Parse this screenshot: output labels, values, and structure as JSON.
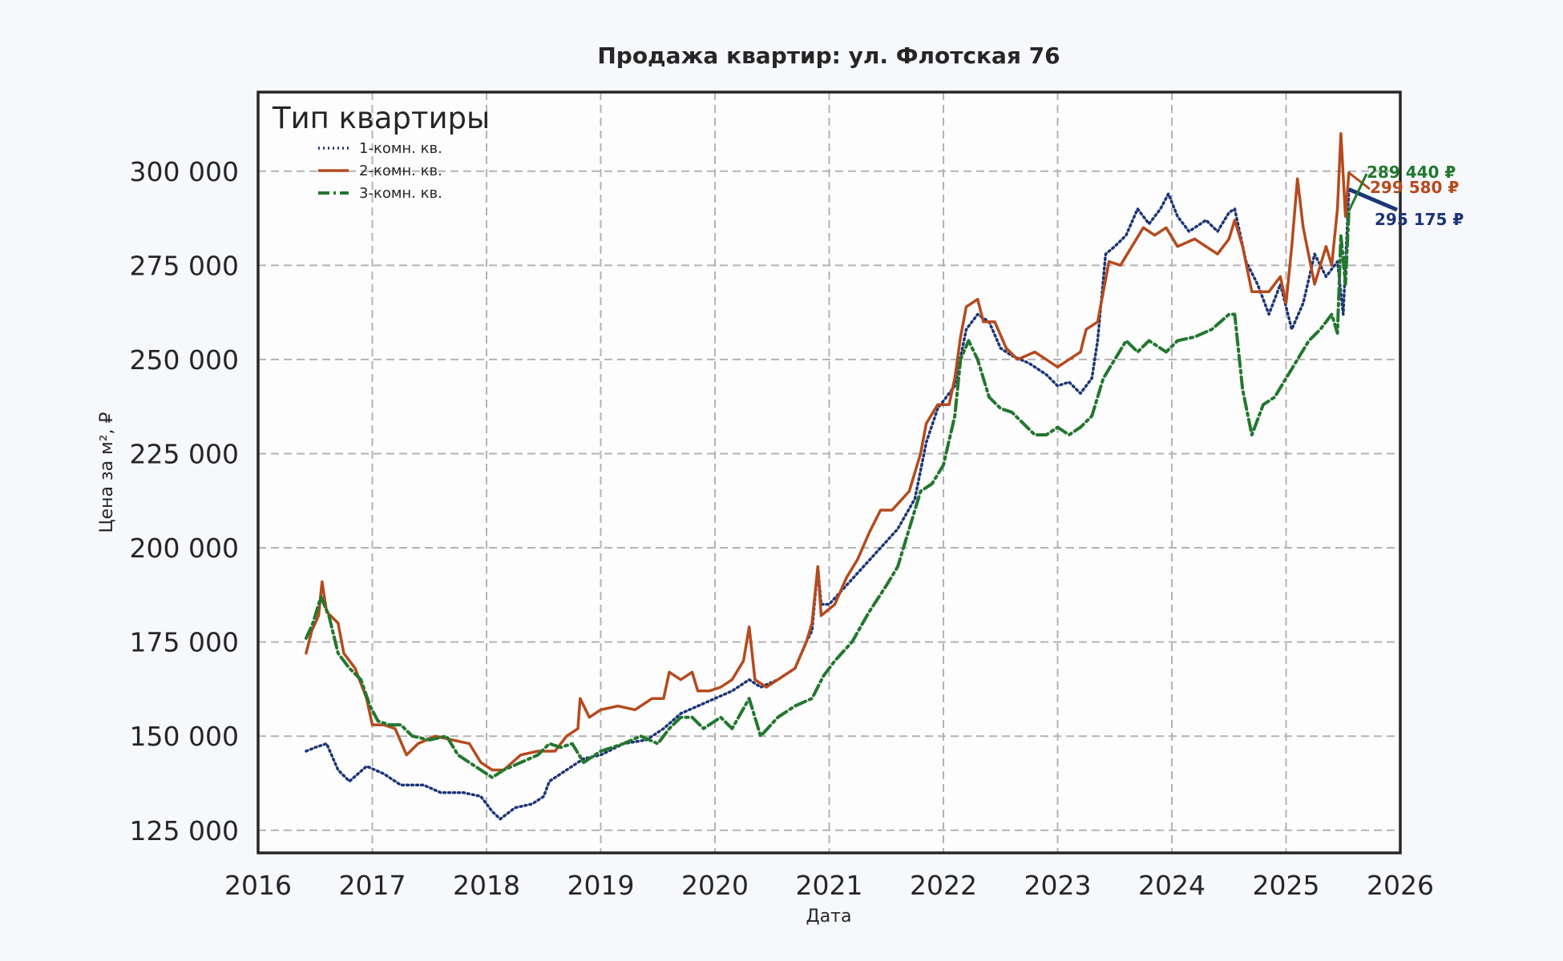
{
  "chart_data": {
    "type": "line",
    "title": "Продажа квартир: ул. Флотская 76",
    "xlabel": "Дата",
    "ylabel": "Цена за м², ₽",
    "xlim": [
      2016,
      2026
    ],
    "ylim": [
      119000,
      321000
    ],
    "x_ticks": [
      "2016",
      "2017",
      "2018",
      "2019",
      "2020",
      "2021",
      "2022",
      "2023",
      "2024",
      "2025",
      "2026"
    ],
    "y_ticks": [
      "125 000",
      "150 000",
      "175 000",
      "200 000",
      "225 000",
      "250 000",
      "275 000",
      "300 000"
    ],
    "grid": true,
    "legend": {
      "title": "Тип квартиры",
      "position": "top-left"
    },
    "series": [
      {
        "name": "1-комн. кв.",
        "color": "#1c3578",
        "style": "dotted",
        "end_label": "295 175 ₽",
        "points": [
          [
            2016.42,
            146000
          ],
          [
            2016.5,
            147000
          ],
          [
            2016.6,
            148000
          ],
          [
            2016.7,
            141000
          ],
          [
            2016.8,
            138000
          ],
          [
            2016.95,
            142000
          ],
          [
            2017.1,
            140000
          ],
          [
            2017.25,
            137000
          ],
          [
            2017.45,
            137000
          ],
          [
            2017.6,
            135000
          ],
          [
            2017.8,
            135000
          ],
          [
            2017.95,
            134000
          ],
          [
            2018.05,
            130000
          ],
          [
            2018.12,
            128000
          ],
          [
            2018.25,
            131000
          ],
          [
            2018.4,
            132000
          ],
          [
            2018.5,
            134000
          ],
          [
            2018.55,
            138000
          ],
          [
            2018.7,
            141000
          ],
          [
            2018.85,
            144000
          ],
          [
            2019.0,
            145000
          ],
          [
            2019.2,
            148000
          ],
          [
            2019.4,
            149000
          ],
          [
            2019.55,
            152000
          ],
          [
            2019.7,
            156000
          ],
          [
            2019.85,
            158000
          ],
          [
            2020.0,
            160000
          ],
          [
            2020.15,
            162000
          ],
          [
            2020.3,
            165000
          ],
          [
            2020.4,
            163000
          ],
          [
            2020.55,
            165000
          ],
          [
            2020.7,
            168000
          ],
          [
            2020.8,
            175000
          ],
          [
            2020.85,
            178000
          ],
          [
            2020.9,
            195000
          ],
          [
            2020.93,
            185000
          ],
          [
            2021.0,
            185000
          ],
          [
            2021.15,
            190000
          ],
          [
            2021.3,
            195000
          ],
          [
            2021.45,
            200000
          ],
          [
            2021.6,
            205000
          ],
          [
            2021.75,
            213000
          ],
          [
            2021.85,
            228000
          ],
          [
            2021.95,
            237000
          ],
          [
            2022.1,
            243000
          ],
          [
            2022.2,
            258000
          ],
          [
            2022.3,
            262000
          ],
          [
            2022.4,
            260000
          ],
          [
            2022.5,
            253000
          ],
          [
            2022.6,
            251000
          ],
          [
            2022.75,
            249000
          ],
          [
            2022.9,
            246000
          ],
          [
            2023.0,
            243000
          ],
          [
            2023.1,
            244000
          ],
          [
            2023.2,
            241000
          ],
          [
            2023.3,
            245000
          ],
          [
            2023.35,
            255000
          ],
          [
            2023.42,
            278000
          ],
          [
            2023.5,
            280000
          ],
          [
            2023.6,
            283000
          ],
          [
            2023.7,
            290000
          ],
          [
            2023.8,
            286000
          ],
          [
            2023.9,
            290000
          ],
          [
            2023.97,
            294000
          ],
          [
            2024.05,
            288000
          ],
          [
            2024.15,
            284000
          ],
          [
            2024.3,
            287000
          ],
          [
            2024.4,
            284000
          ],
          [
            2024.5,
            289000
          ],
          [
            2024.55,
            290000
          ],
          [
            2024.6,
            283000
          ],
          [
            2024.65,
            276000
          ],
          [
            2024.75,
            270000
          ],
          [
            2024.85,
            262000
          ],
          [
            2024.95,
            270000
          ],
          [
            2025.05,
            258000
          ],
          [
            2025.15,
            265000
          ],
          [
            2025.25,
            278000
          ],
          [
            2025.35,
            272000
          ],
          [
            2025.45,
            276000
          ],
          [
            2025.5,
            262000
          ],
          [
            2025.55,
            295175
          ]
        ]
      },
      {
        "name": "2-комн. кв.",
        "color": "#b54a1d",
        "style": "solid",
        "end_label": "299 580 ₽",
        "points": [
          [
            2016.42,
            172000
          ],
          [
            2016.47,
            178000
          ],
          [
            2016.53,
            182000
          ],
          [
            2016.56,
            191000
          ],
          [
            2016.6,
            183000
          ],
          [
            2016.7,
            180000
          ],
          [
            2016.75,
            172000
          ],
          [
            2016.85,
            168000
          ],
          [
            2016.95,
            160000
          ],
          [
            2017.0,
            153000
          ],
          [
            2017.1,
            153000
          ],
          [
            2017.2,
            152000
          ],
          [
            2017.3,
            145000
          ],
          [
            2017.4,
            148000
          ],
          [
            2017.55,
            150000
          ],
          [
            2017.7,
            149000
          ],
          [
            2017.85,
            148000
          ],
          [
            2017.95,
            143000
          ],
          [
            2018.05,
            141000
          ],
          [
            2018.15,
            141000
          ],
          [
            2018.3,
            145000
          ],
          [
            2018.45,
            146000
          ],
          [
            2018.6,
            146000
          ],
          [
            2018.7,
            150000
          ],
          [
            2018.8,
            152000
          ],
          [
            2018.82,
            160000
          ],
          [
            2018.9,
            155000
          ],
          [
            2019.0,
            157000
          ],
          [
            2019.15,
            158000
          ],
          [
            2019.3,
            157000
          ],
          [
            2019.45,
            160000
          ],
          [
            2019.55,
            160000
          ],
          [
            2019.6,
            167000
          ],
          [
            2019.7,
            165000
          ],
          [
            2019.8,
            167000
          ],
          [
            2019.85,
            162000
          ],
          [
            2019.95,
            162000
          ],
          [
            2020.05,
            163000
          ],
          [
            2020.15,
            165000
          ],
          [
            2020.25,
            170000
          ],
          [
            2020.3,
            179000
          ],
          [
            2020.35,
            165000
          ],
          [
            2020.45,
            163000
          ],
          [
            2020.55,
            165000
          ],
          [
            2020.7,
            168000
          ],
          [
            2020.8,
            175000
          ],
          [
            2020.85,
            180000
          ],
          [
            2020.9,
            195000
          ],
          [
            2020.93,
            182000
          ],
          [
            2021.05,
            185000
          ],
          [
            2021.15,
            192000
          ],
          [
            2021.25,
            197000
          ],
          [
            2021.35,
            204000
          ],
          [
            2021.45,
            210000
          ],
          [
            2021.55,
            210000
          ],
          [
            2021.7,
            215000
          ],
          [
            2021.8,
            225000
          ],
          [
            2021.85,
            233000
          ],
          [
            2021.95,
            238000
          ],
          [
            2022.05,
            238000
          ],
          [
            2022.1,
            245000
          ],
          [
            2022.15,
            256000
          ],
          [
            2022.2,
            264000
          ],
          [
            2022.3,
            266000
          ],
          [
            2022.35,
            260000
          ],
          [
            2022.45,
            260000
          ],
          [
            2022.55,
            253000
          ],
          [
            2022.65,
            250000
          ],
          [
            2022.8,
            252000
          ],
          [
            2022.9,
            250000
          ],
          [
            2023.0,
            248000
          ],
          [
            2023.1,
            250000
          ],
          [
            2023.2,
            252000
          ],
          [
            2023.25,
            258000
          ],
          [
            2023.35,
            260000
          ],
          [
            2023.45,
            276000
          ],
          [
            2023.55,
            275000
          ],
          [
            2023.65,
            280000
          ],
          [
            2023.75,
            285000
          ],
          [
            2023.85,
            283000
          ],
          [
            2023.95,
            285000
          ],
          [
            2024.05,
            280000
          ],
          [
            2024.2,
            282000
          ],
          [
            2024.3,
            280000
          ],
          [
            2024.4,
            278000
          ],
          [
            2024.5,
            282000
          ],
          [
            2024.55,
            287000
          ],
          [
            2024.62,
            280000
          ],
          [
            2024.7,
            268000
          ],
          [
            2024.85,
            268000
          ],
          [
            2024.95,
            272000
          ],
          [
            2025.0,
            265000
          ],
          [
            2025.05,
            280000
          ],
          [
            2025.1,
            298000
          ],
          [
            2025.15,
            285000
          ],
          [
            2025.25,
            270000
          ],
          [
            2025.35,
            280000
          ],
          [
            2025.4,
            275000
          ],
          [
            2025.45,
            290000
          ],
          [
            2025.48,
            310000
          ],
          [
            2025.52,
            288000
          ],
          [
            2025.55,
            299580
          ]
        ]
      },
      {
        "name": "3-комн. кв.",
        "color": "#23772e",
        "style": "dashdot",
        "end_label": "289 440 ₽",
        "points": [
          [
            2016.42,
            176000
          ],
          [
            2016.48,
            180000
          ],
          [
            2016.55,
            187000
          ],
          [
            2016.62,
            182000
          ],
          [
            2016.7,
            172000
          ],
          [
            2016.8,
            168000
          ],
          [
            2016.9,
            165000
          ],
          [
            2016.98,
            158000
          ],
          [
            2017.05,
            154000
          ],
          [
            2017.15,
            153000
          ],
          [
            2017.25,
            153000
          ],
          [
            2017.35,
            150000
          ],
          [
            2017.5,
            149000
          ],
          [
            2017.65,
            150000
          ],
          [
            2017.75,
            145000
          ],
          [
            2017.85,
            143000
          ],
          [
            2017.95,
            141000
          ],
          [
            2018.05,
            139000
          ],
          [
            2018.15,
            141000
          ],
          [
            2018.3,
            143000
          ],
          [
            2018.45,
            145000
          ],
          [
            2018.55,
            148000
          ],
          [
            2018.65,
            147000
          ],
          [
            2018.75,
            148000
          ],
          [
            2018.85,
            143000
          ],
          [
            2019.0,
            146000
          ],
          [
            2019.2,
            148000
          ],
          [
            2019.35,
            150000
          ],
          [
            2019.5,
            148000
          ],
          [
            2019.6,
            152000
          ],
          [
            2019.7,
            155000
          ],
          [
            2019.8,
            155000
          ],
          [
            2019.9,
            152000
          ],
          [
            2020.05,
            155000
          ],
          [
            2020.15,
            152000
          ],
          [
            2020.3,
            160000
          ],
          [
            2020.4,
            150000
          ],
          [
            2020.55,
            155000
          ],
          [
            2020.7,
            158000
          ],
          [
            2020.85,
            160000
          ],
          [
            2020.95,
            166000
          ],
          [
            2021.05,
            170000
          ],
          [
            2021.2,
            175000
          ],
          [
            2021.35,
            183000
          ],
          [
            2021.5,
            190000
          ],
          [
            2021.6,
            195000
          ],
          [
            2021.7,
            205000
          ],
          [
            2021.8,
            215000
          ],
          [
            2021.9,
            217000
          ],
          [
            2022.0,
            222000
          ],
          [
            2022.1,
            235000
          ],
          [
            2022.15,
            250000
          ],
          [
            2022.22,
            255000
          ],
          [
            2022.3,
            250000
          ],
          [
            2022.4,
            240000
          ],
          [
            2022.5,
            237000
          ],
          [
            2022.6,
            236000
          ],
          [
            2022.7,
            233000
          ],
          [
            2022.8,
            230000
          ],
          [
            2022.9,
            230000
          ],
          [
            2023.0,
            232000
          ],
          [
            2023.1,
            230000
          ],
          [
            2023.2,
            232000
          ],
          [
            2023.3,
            235000
          ],
          [
            2023.4,
            245000
          ],
          [
            2023.5,
            250000
          ],
          [
            2023.6,
            255000
          ],
          [
            2023.7,
            252000
          ],
          [
            2023.8,
            255000
          ],
          [
            2023.95,
            252000
          ],
          [
            2024.05,
            255000
          ],
          [
            2024.2,
            256000
          ],
          [
            2024.35,
            258000
          ],
          [
            2024.5,
            262000
          ],
          [
            2024.55,
            262000
          ],
          [
            2024.62,
            242000
          ],
          [
            2024.7,
            230000
          ],
          [
            2024.8,
            238000
          ],
          [
            2024.9,
            240000
          ],
          [
            2025.0,
            245000
          ],
          [
            2025.1,
            250000
          ],
          [
            2025.2,
            255000
          ],
          [
            2025.3,
            258000
          ],
          [
            2025.4,
            262000
          ],
          [
            2025.45,
            257000
          ],
          [
            2025.48,
            283000
          ],
          [
            2025.52,
            270000
          ],
          [
            2025.55,
            289440
          ]
        ]
      }
    ]
  }
}
